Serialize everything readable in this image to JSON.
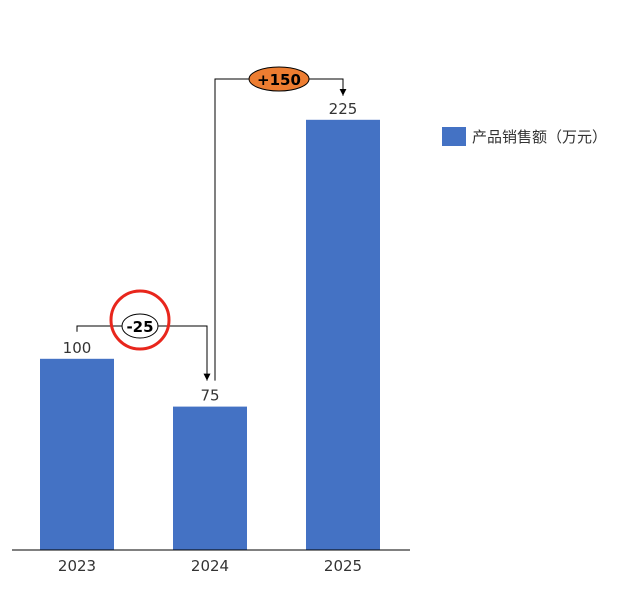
{
  "chart_data": {
    "type": "bar",
    "categories": [
      "2023",
      "2024",
      "2025"
    ],
    "series": [
      {
        "name": "产品销售额（万元）",
        "values": [
          100,
          75,
          225
        ]
      }
    ],
    "data_labels": [
      "100",
      "75",
      "225"
    ],
    "ylim": [
      0,
      250
    ],
    "grid": false,
    "legend": "right",
    "annotations": [
      {
        "from": "2023",
        "to": "2024",
        "text": "-25",
        "style": "white-oval-red-circle"
      },
      {
        "from": "2024",
        "to": "2025",
        "text": "+150",
        "style": "orange-oval"
      }
    ],
    "colors": {
      "bar": "#4472C4",
      "increase": "#ED7D31",
      "highlight": "#E8261C",
      "axis": "#000000"
    }
  }
}
